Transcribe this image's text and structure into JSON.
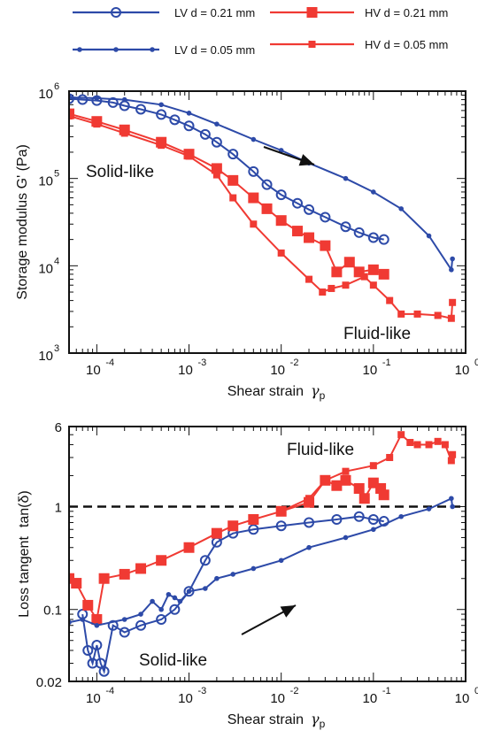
{
  "colors": {
    "lv": "#2d4aa8",
    "hv": "#f03a33",
    "axis": "#111111",
    "reference_line": "#111111"
  },
  "legend": [
    {
      "label": "LV d = 0.21 mm",
      "color": "#2d4aa8",
      "marker": "open-circle"
    },
    {
      "label": "HV d = 0.21 mm",
      "color": "#f03a33",
      "marker": "filled-square-large"
    },
    {
      "label": "LV d = 0.05 mm",
      "color": "#2d4aa8",
      "marker": "filled-dot"
    },
    {
      "label": "HV d = 0.05 mm",
      "color": "#f03a33",
      "marker": "filled-square-small"
    }
  ],
  "chart_data": [
    {
      "type": "line",
      "xscale": "log",
      "yscale": "log",
      "xlabel": "Shear strain",
      "xlabel_symbol": "γ",
      "xlabel_sub": "p",
      "ylabel": "Storage modulus G' (Pa)",
      "xlim": [
        5e-05,
        1
      ],
      "ylim": [
        1000,
        1000000
      ],
      "xticks": [
        {
          "base": "10",
          "exp": "-4",
          "v": 0.0001
        },
        {
          "base": "10",
          "exp": "-3",
          "v": 0.001
        },
        {
          "base": "10",
          "exp": "-2",
          "v": 0.01
        },
        {
          "base": "10",
          "exp": "-1",
          "v": 0.1
        },
        {
          "base": "10",
          "exp": "0",
          "v": 1
        }
      ],
      "yticks": [
        {
          "base": "10",
          "exp": "3",
          "v": 1000
        },
        {
          "base": "10",
          "exp": "4",
          "v": 10000
        },
        {
          "base": "10",
          "exp": "5",
          "v": 100000
        },
        {
          "base": "10",
          "exp": "6",
          "v": 1000000
        }
      ],
      "annotations": [
        "Solid-like",
        "Fluid-like"
      ],
      "series": [
        {
          "name": "LV d = 0.21 mm",
          "color": "#2d4aa8",
          "marker": "open-circle",
          "x": [
            5e-05,
            7e-05,
            0.0001,
            0.00015,
            0.0002,
            0.0003,
            0.0005,
            0.0007,
            0.001,
            0.0015,
            0.002,
            0.003,
            0.005,
            0.007,
            0.01,
            0.015,
            0.02,
            0.03,
            0.05,
            0.07,
            0.1,
            0.13
          ],
          "y": [
            820000,
            800000,
            780000,
            740000,
            680000,
            620000,
            540000,
            470000,
            400000,
            320000,
            260000,
            190000,
            120000,
            85000,
            65000,
            52000,
            44000,
            36000,
            28000,
            24000,
            21000,
            20000
          ]
        },
        {
          "name": "HV d = 0.21 mm",
          "color": "#f03a33",
          "marker": "filled-square-large",
          "x": [
            5e-05,
            0.0001,
            0.0002,
            0.0005,
            0.001,
            0.002,
            0.003,
            0.005,
            0.007,
            0.01,
            0.015,
            0.02,
            0.03,
            0.04,
            0.055,
            0.07,
            0.1,
            0.13
          ],
          "y": [
            550000,
            450000,
            360000,
            260000,
            190000,
            130000,
            95000,
            60000,
            45000,
            33000,
            25000,
            21000,
            17000,
            8500,
            11000,
            8500,
            9000,
            8000
          ]
        },
        {
          "name": "LV d = 0.05 mm",
          "color": "#2d4aa8",
          "marker": "filled-dot",
          "x": [
            5e-05,
            0.0001,
            0.0002,
            0.0005,
            0.001,
            0.002,
            0.005,
            0.01,
            0.02,
            0.05,
            0.1,
            0.2,
            0.4,
            0.7,
            0.72
          ],
          "y": [
            850000,
            830000,
            800000,
            700000,
            560000,
            420000,
            280000,
            210000,
            150000,
            100000,
            70000,
            45000,
            22000,
            9000,
            12000
          ]
        },
        {
          "name": "HV d = 0.05 mm",
          "color": "#f03a33",
          "marker": "filled-square-small",
          "x": [
            5e-05,
            0.0001,
            0.0002,
            0.0005,
            0.001,
            0.002,
            0.003,
            0.005,
            0.01,
            0.02,
            0.028,
            0.035,
            0.05,
            0.08,
            0.1,
            0.15,
            0.2,
            0.3,
            0.5,
            0.7,
            0.72
          ],
          "y": [
            520000,
            420000,
            330000,
            240000,
            180000,
            110000,
            60000,
            30000,
            14000,
            7000,
            5000,
            5500,
            6000,
            7500,
            6000,
            4000,
            2800,
            2800,
            2700,
            2500,
            3800
          ]
        }
      ]
    },
    {
      "type": "line",
      "xscale": "log",
      "yscale": "log",
      "xlabel": "Shear strain",
      "xlabel_symbol": "γ",
      "xlabel_sub": "p",
      "ylabel": "Loss tangent",
      "ylabel_suffix": "tan(δ)",
      "xlim": [
        5e-05,
        1
      ],
      "ylim": [
        0.02,
        6
      ],
      "xticks": [
        {
          "base": "10",
          "exp": "-4",
          "v": 0.0001
        },
        {
          "base": "10",
          "exp": "-3",
          "v": 0.001
        },
        {
          "base": "10",
          "exp": "-2",
          "v": 0.01
        },
        {
          "base": "10",
          "exp": "-1",
          "v": 0.1
        },
        {
          "base": "10",
          "exp": "0",
          "v": 1
        }
      ],
      "yticks": [
        {
          "label": "0.02",
          "v": 0.02
        },
        {
          "label": "0.1",
          "v": 0.1
        },
        {
          "label": "1",
          "v": 1
        },
        {
          "label": "6",
          "v": 6
        }
      ],
      "reference_line": {
        "y": 1,
        "style": "dashed"
      },
      "annotations": [
        "Fluid-like",
        "Solid-like"
      ],
      "series": [
        {
          "name": "LV d = 0.21 mm",
          "color": "#2d4aa8",
          "marker": "open-circle",
          "x": [
            7e-05,
            8e-05,
            9e-05,
            0.0001,
            0.00011,
            0.00012,
            0.00015,
            0.0002,
            0.0003,
            0.0005,
            0.0007,
            0.001,
            0.0015,
            0.002,
            0.003,
            0.005,
            0.01,
            0.02,
            0.04,
            0.07,
            0.1,
            0.13
          ],
          "y": [
            0.09,
            0.04,
            0.03,
            0.045,
            0.03,
            0.025,
            0.07,
            0.06,
            0.07,
            0.08,
            0.1,
            0.15,
            0.3,
            0.45,
            0.55,
            0.6,
            0.65,
            0.7,
            0.75,
            0.8,
            0.75,
            0.72
          ]
        },
        {
          "name": "HV d = 0.21 mm",
          "color": "#f03a33",
          "marker": "filled-square-large",
          "x": [
            5e-05,
            6e-05,
            8e-05,
            0.0001,
            0.00012,
            0.0002,
            0.0003,
            0.0005,
            0.001,
            0.002,
            0.003,
            0.005,
            0.01,
            0.02,
            0.03,
            0.04,
            0.05,
            0.07,
            0.08,
            0.1,
            0.12,
            0.13
          ],
          "y": [
            0.2,
            0.18,
            0.11,
            0.08,
            0.2,
            0.22,
            0.25,
            0.3,
            0.4,
            0.55,
            0.65,
            0.75,
            0.9,
            1.1,
            1.8,
            1.6,
            1.8,
            1.5,
            1.2,
            1.7,
            1.5,
            1.3
          ]
        },
        {
          "name": "LV d = 0.05 mm",
          "color": "#2d4aa8",
          "marker": "filled-dot",
          "x": [
            5e-05,
            7e-05,
            0.0001,
            0.0002,
            0.0003,
            0.0004,
            0.0005,
            0.0006,
            0.0007,
            0.0008,
            0.001,
            0.0015,
            0.002,
            0.003,
            0.005,
            0.01,
            0.02,
            0.05,
            0.1,
            0.2,
            0.4,
            0.7,
            0.72
          ],
          "y": [
            0.075,
            0.08,
            0.07,
            0.08,
            0.09,
            0.12,
            0.1,
            0.14,
            0.13,
            0.12,
            0.15,
            0.16,
            0.2,
            0.22,
            0.25,
            0.3,
            0.4,
            0.5,
            0.6,
            0.8,
            0.95,
            1.2,
            1.0
          ]
        },
        {
          "name": "HV d = 0.05 mm",
          "color": "#f03a33",
          "marker": "filled-square-small",
          "x": [
            0.01,
            0.02,
            0.03,
            0.05,
            0.1,
            0.15,
            0.2,
            0.25,
            0.3,
            0.4,
            0.5,
            0.6,
            0.7,
            0.72
          ],
          "y": [
            0.9,
            1.2,
            1.8,
            2.2,
            2.5,
            3.0,
            5.0,
            4.2,
            4.0,
            4.0,
            4.3,
            4.0,
            2.8,
            3.2
          ]
        }
      ]
    }
  ]
}
